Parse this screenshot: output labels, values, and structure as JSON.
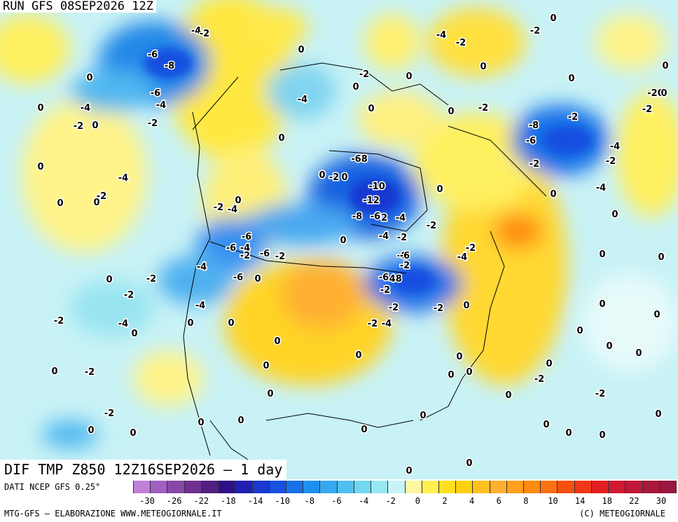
{
  "header": {
    "run_label": "RUN GFS 08SEP2026 12Z",
    "field_label": "DIF TMP Z850 12Z16SEP2026 – 1 day"
  },
  "footer": {
    "source": "DATI NCEP GFS 0.25°",
    "credit": "MTG-GFS – ELABORAZIONE WWW.METEOGIORNALE.IT",
    "copyright": "(C) METEOGIORNALE"
  },
  "legend": {
    "colors": [
      "#c080d8",
      "#a060c0",
      "#8848a8",
      "#703090",
      "#502080",
      "#301088",
      "#2020b0",
      "#1838d0",
      "#1850e0",
      "#1870e8",
      "#2090f0",
      "#38a8f0",
      "#50c0f0",
      "#70d8f0",
      "#98e8f0",
      "#c8f4f8",
      "#fff8a0",
      "#fff050",
      "#ffe020",
      "#ffd010",
      "#ffc020",
      "#ffb030",
      "#ffa020",
      "#ff8a10",
      "#ff7010",
      "#f85010",
      "#f03818",
      "#e02020",
      "#d01830",
      "#c01838",
      "#a81838",
      "#981840"
    ],
    "tick_labels": [
      "-30",
      "-26",
      "-22",
      "-18",
      "-14",
      "-10",
      "-8",
      "-6",
      "-4",
      "-2",
      "0",
      "2",
      "4",
      "6",
      "8",
      "10",
      "14",
      "18",
      "22",
      "30"
    ]
  },
  "contour_labels": [
    {
      "text": "-6"
    },
    {
      "text": "-8"
    },
    {
      "text": "-4"
    },
    {
      "text": "-2"
    },
    {
      "text": "0"
    },
    {
      "text": "-6"
    },
    {
      "text": "-4"
    },
    {
      "text": "-4"
    },
    {
      "text": "-2"
    },
    {
      "text": "0"
    },
    {
      "text": "0"
    },
    {
      "text": "-2"
    },
    {
      "text": "0"
    },
    {
      "text": "-4"
    },
    {
      "text": "0"
    },
    {
      "text": "0"
    },
    {
      "text": "-2"
    },
    {
      "text": "0"
    },
    {
      "text": "-2"
    },
    {
      "text": "-4"
    },
    {
      "text": "-6"
    },
    {
      "text": "-4"
    },
    {
      "text": "-6"
    },
    {
      "text": "-2"
    },
    {
      "text": "-6"
    },
    {
      "text": "-2"
    },
    {
      "text": "0"
    },
    {
      "text": "-2"
    },
    {
      "text": "-4"
    },
    {
      "text": "-6"
    },
    {
      "text": "0"
    },
    {
      "text": "-4"
    },
    {
      "text": "-2"
    },
    {
      "text": "0"
    },
    {
      "text": "-2"
    },
    {
      "text": "-4"
    },
    {
      "text": "0"
    },
    {
      "text": "0"
    },
    {
      "text": "0"
    },
    {
      "text": "-2"
    },
    {
      "text": "-2"
    },
    {
      "text": "-2"
    },
    {
      "text": "-4"
    },
    {
      "text": "-2"
    },
    {
      "text": "0"
    },
    {
      "text": "0"
    },
    {
      "text": "0"
    },
    {
      "text": "-68"
    },
    {
      "text": "-2"
    },
    {
      "text": "-4"
    },
    {
      "text": "0"
    },
    {
      "text": "-10"
    },
    {
      "text": "-12"
    },
    {
      "text": "-8"
    },
    {
      "text": "-6"
    },
    {
      "text": "0"
    },
    {
      "text": "-4"
    },
    {
      "text": "-2"
    },
    {
      "text": "-2"
    },
    {
      "text": "0"
    },
    {
      "text": "-6"
    },
    {
      "text": "-48"
    },
    {
      "text": "-2"
    },
    {
      "text": "-2"
    },
    {
      "text": "0"
    },
    {
      "text": "0"
    },
    {
      "text": "0"
    },
    {
      "text": "0"
    },
    {
      "text": "0"
    },
    {
      "text": "-2"
    },
    {
      "text": "-4"
    },
    {
      "text": "0"
    },
    {
      "text": "0"
    },
    {
      "text": "-2"
    },
    {
      "text": "0"
    },
    {
      "text": "0"
    },
    {
      "text": "-2"
    },
    {
      "text": "0"
    },
    {
      "text": "-2"
    },
    {
      "text": "0"
    },
    {
      "text": "0"
    },
    {
      "text": "0"
    },
    {
      "text": "0"
    },
    {
      "text": "-2"
    },
    {
      "text": "-4"
    },
    {
      "text": "-8"
    },
    {
      "text": "-6"
    },
    {
      "text": "-2"
    },
    {
      "text": "-2"
    },
    {
      "text": "-4"
    },
    {
      "text": "-2"
    },
    {
      "text": "-4"
    },
    {
      "text": "0"
    },
    {
      "text": "0"
    },
    {
      "text": "0"
    },
    {
      "text": "0"
    },
    {
      "text": "0"
    },
    {
      "text": "-20"
    },
    {
      "text": "-2"
    },
    {
      "text": "0"
    },
    {
      "text": "0"
    },
    {
      "text": "0"
    },
    {
      "text": "0"
    },
    {
      "text": "0"
    },
    {
      "text": "0"
    },
    {
      "text": "0"
    },
    {
      "text": "0"
    },
    {
      "text": "0"
    },
    {
      "text": "0"
    },
    {
      "text": "0"
    },
    {
      "text": "0"
    },
    {
      "text": "0"
    },
    {
      "text": "0"
    },
    {
      "text": "0"
    },
    {
      "text": "0"
    },
    {
      "text": "-2"
    },
    {
      "text": "-4"
    },
    {
      "text": "-2"
    },
    {
      "text": "0"
    },
    {
      "text": "0"
    },
    {
      "text": "0"
    },
    {
      "text": "0"
    },
    {
      "text": "-2"
    },
    {
      "text": "-2"
    },
    {
      "text": "-4"
    },
    {
      "text": "-6"
    },
    {
      "text": "-6"
    },
    {
      "text": "-4"
    },
    {
      "text": "0"
    },
    {
      "text": "-2"
    }
  ]
}
